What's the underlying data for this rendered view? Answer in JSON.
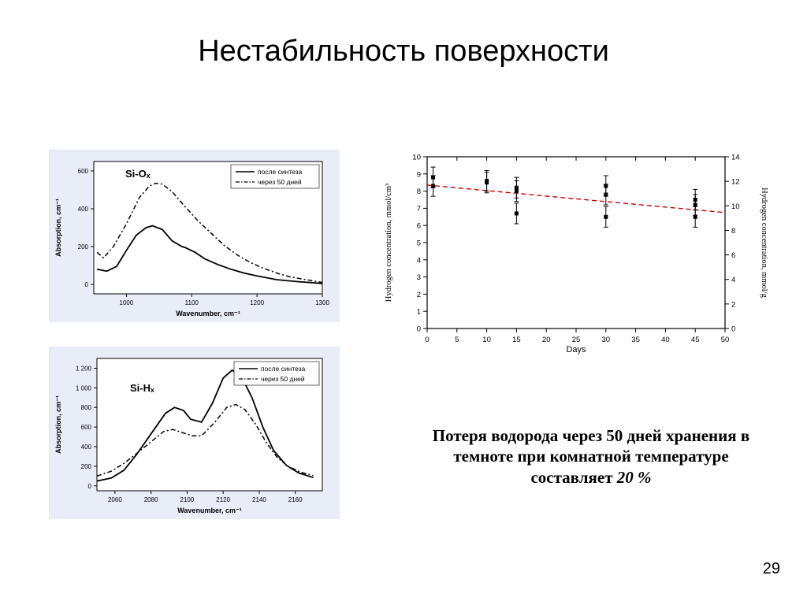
{
  "title": "Нестабильность поверхности",
  "page_number": "29",
  "caption": "Потеря водорода через 50 дней хранения в темноте при комнатной температуре составляет 20 %",
  "caption_emph": "20 %",
  "left_top": {
    "type": "line",
    "bg": "#e8edf8",
    "label_in": "Si-Oₓ",
    "legend1": "после синтеза",
    "legend2": "через 50 дней",
    "xlabel": "Wavenumber, cm⁻¹",
    "ylabel": "Absorption, cm⁻¹",
    "xlim": [
      950,
      1300
    ],
    "ylim": [
      -50,
      650
    ],
    "xticks": [
      1000,
      1100,
      1200,
      1300
    ],
    "yticks": [
      0,
      200,
      400,
      600
    ],
    "line_solid_color": "#000000",
    "line_dash_color": "#000000",
    "line_solid_width": 1.8,
    "line_dash_width": 1.5,
    "series_solid": [
      [
        955,
        80
      ],
      [
        970,
        70
      ],
      [
        985,
        95
      ],
      [
        1000,
        180
      ],
      [
        1015,
        260
      ],
      [
        1030,
        300
      ],
      [
        1040,
        310
      ],
      [
        1055,
        290
      ],
      [
        1070,
        230
      ],
      [
        1085,
        200
      ],
      [
        1090,
        195
      ],
      [
        1105,
        170
      ],
      [
        1120,
        135
      ],
      [
        1140,
        105
      ],
      [
        1160,
        80
      ],
      [
        1180,
        60
      ],
      [
        1200,
        45
      ],
      [
        1230,
        25
      ],
      [
        1260,
        15
      ],
      [
        1300,
        5
      ]
    ],
    "series_dash": [
      [
        955,
        170
      ],
      [
        965,
        140
      ],
      [
        980,
        200
      ],
      [
        1000,
        320
      ],
      [
        1020,
        460
      ],
      [
        1035,
        520
      ],
      [
        1045,
        535
      ],
      [
        1055,
        530
      ],
      [
        1070,
        490
      ],
      [
        1090,
        410
      ],
      [
        1110,
        335
      ],
      [
        1130,
        270
      ],
      [
        1150,
        205
      ],
      [
        1170,
        155
      ],
      [
        1190,
        115
      ],
      [
        1210,
        85
      ],
      [
        1230,
        60
      ],
      [
        1250,
        40
      ],
      [
        1275,
        25
      ],
      [
        1300,
        10
      ]
    ]
  },
  "left_bottom": {
    "type": "line",
    "bg": "#e8edf8",
    "label_in": "Si-Hₓ",
    "legend1": "после синтеза",
    "legend2": "через 50 дней",
    "xlabel": "Wavenumber, cm⁻¹",
    "ylabel": "Absorption, cm⁻¹",
    "xlim": [
      2050,
      2175
    ],
    "ylim": [
      -50,
      1300
    ],
    "xticks": [
      2060,
      2080,
      2100,
      2120,
      2140,
      2160
    ],
    "yticks": [
      0,
      200,
      400,
      600,
      800,
      1000,
      1200
    ],
    "ytick_labels": [
      "0",
      "200",
      "400",
      "600",
      "800",
      "1 000",
      "1 200"
    ],
    "line_solid_color": "#000000",
    "line_dash_color": "#000000",
    "line_solid_width": 1.8,
    "line_dash_width": 1.5,
    "series_solid": [
      [
        2050,
        50
      ],
      [
        2058,
        80
      ],
      [
        2065,
        160
      ],
      [
        2072,
        320
      ],
      [
        2080,
        530
      ],
      [
        2088,
        740
      ],
      [
        2093,
        800
      ],
      [
        2098,
        770
      ],
      [
        2102,
        680
      ],
      [
        2108,
        650
      ],
      [
        2114,
        840
      ],
      [
        2120,
        1100
      ],
      [
        2125,
        1180
      ],
      [
        2130,
        1120
      ],
      [
        2136,
        900
      ],
      [
        2142,
        600
      ],
      [
        2148,
        360
      ],
      [
        2155,
        210
      ],
      [
        2162,
        130
      ],
      [
        2170,
        85
      ]
    ],
    "series_dash": [
      [
        2050,
        100
      ],
      [
        2058,
        150
      ],
      [
        2065,
        230
      ],
      [
        2072,
        330
      ],
      [
        2080,
        450
      ],
      [
        2087,
        555
      ],
      [
        2092,
        575
      ],
      [
        2098,
        540
      ],
      [
        2103,
        510
      ],
      [
        2108,
        510
      ],
      [
        2115,
        640
      ],
      [
        2122,
        800
      ],
      [
        2127,
        830
      ],
      [
        2132,
        780
      ],
      [
        2138,
        630
      ],
      [
        2144,
        440
      ],
      [
        2150,
        290
      ],
      [
        2156,
        200
      ],
      [
        2163,
        140
      ],
      [
        2170,
        105
      ]
    ]
  },
  "scatter": {
    "type": "scatter",
    "xlabel": "Days",
    "ylabel_left": "Hydrogen concentration, mmol/cm³",
    "ylabel_right": "Hydrogen concentration, mmol/g",
    "xlim": [
      0,
      50
    ],
    "y1lim": [
      0,
      10
    ],
    "y2lim": [
      0,
      14
    ],
    "xticks": [
      0,
      5,
      10,
      15,
      20,
      25,
      30,
      35,
      40,
      45,
      50
    ],
    "y1ticks": [
      0,
      1,
      2,
      3,
      4,
      5,
      6,
      7,
      8,
      9,
      10
    ],
    "y2ticks": [
      0,
      2,
      4,
      6,
      8,
      10,
      12,
      14
    ],
    "marker_color": "#000000",
    "marker_size": 5,
    "error_color": "#000000",
    "trend_color": "#d00000",
    "trend_dash": "6,4",
    "trend_width": 1.4,
    "grid": false,
    "points": [
      {
        "x": 1,
        "y": 8.8,
        "e": 0.6
      },
      {
        "x": 1,
        "y": 8.3,
        "e": 0.6
      },
      {
        "x": 10,
        "y": 8.5,
        "e": 0.6
      },
      {
        "x": 10,
        "y": 8.6,
        "e": 0.6
      },
      {
        "x": 15,
        "y": 8.2,
        "e": 0.6
      },
      {
        "x": 15,
        "y": 8.0,
        "e": 0.6
      },
      {
        "x": 15,
        "y": 6.7,
        "e": 0.6
      },
      {
        "x": 30,
        "y": 8.3,
        "e": 0.6
      },
      {
        "x": 30,
        "y": 7.8,
        "e": 0.6
      },
      {
        "x": 30,
        "y": 6.5,
        "e": 0.6
      },
      {
        "x": 45,
        "y": 7.5,
        "e": 0.6
      },
      {
        "x": 45,
        "y": 7.2,
        "e": 0.6
      },
      {
        "x": 45,
        "y": 6.5,
        "e": 0.6
      }
    ],
    "trend": {
      "x1": 0,
      "y1": 8.35,
      "x2": 50,
      "y2": 6.75
    }
  },
  "colors": {
    "text": "#000000",
    "axis": "#000000"
  },
  "fonts": {
    "title_size": 38,
    "caption_size": 21,
    "axis_label_size": 9,
    "tick_size": 8
  }
}
